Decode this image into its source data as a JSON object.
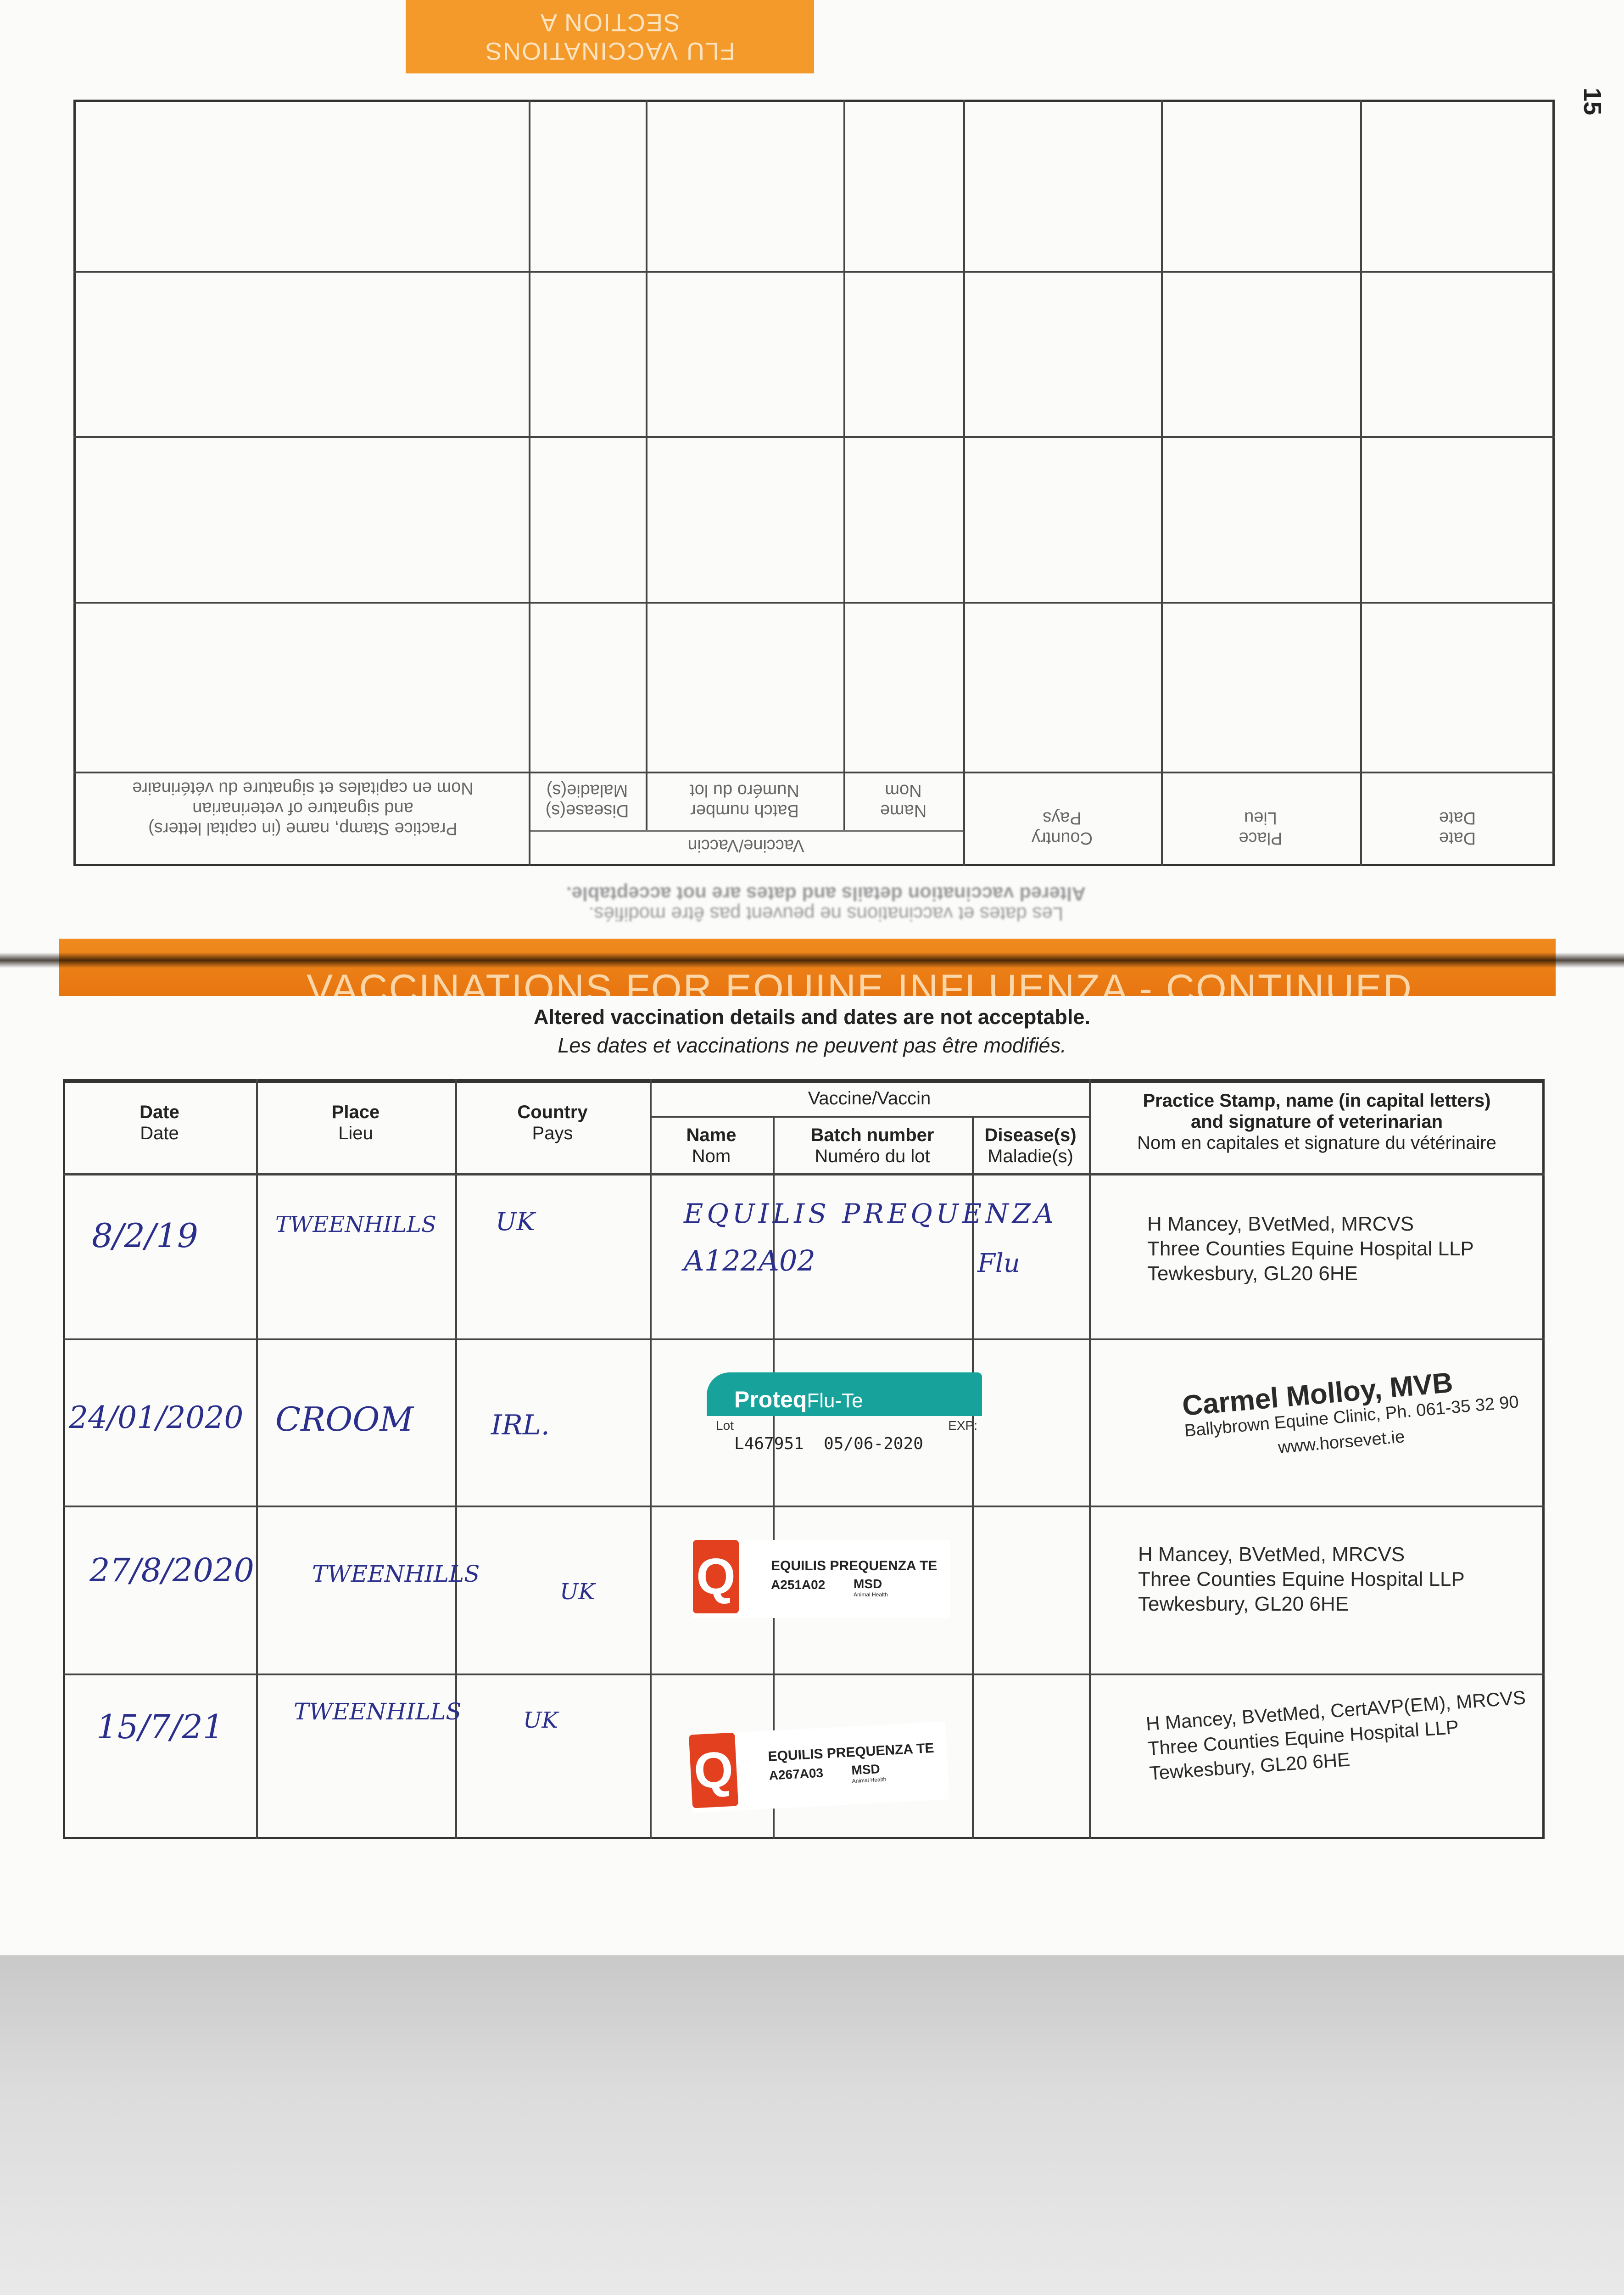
{
  "upper_page": {
    "tab_lines": [
      "FLU VACCINATIONS",
      "SECTION A"
    ],
    "page_number": "15",
    "header": {
      "date": [
        "Date",
        "Date"
      ],
      "place": [
        "Place",
        "Lieu"
      ],
      "country": [
        "Country",
        "Pays"
      ],
      "vaccine": "Vaccine/Vaccin",
      "name": [
        "Name",
        "Nom"
      ],
      "batch": [
        "Batch number",
        "Numéro du lot"
      ],
      "disease": [
        "Disease(s)",
        "Maladie(s)"
      ],
      "stamp": [
        "Practice Stamp, name (in capital letters)",
        "and signature of veterinarian",
        "Nom en capitales et signature du vétérinaire"
      ]
    },
    "caption": [
      "Altered vaccination details and dates are not acceptable.",
      "Les dates et vaccinations ne peuvent pas être modifiés."
    ]
  },
  "banner": "VACCINATIONS FOR EQUINE INFLUENZA - CONTINUED",
  "caption": {
    "bold": "Altered vaccination details and dates are not acceptable.",
    "italic": "Les dates et vaccinations ne peuvent pas être modifiés."
  },
  "table": {
    "header": {
      "date": [
        "Date",
        "Date"
      ],
      "place": [
        "Place",
        "Lieu"
      ],
      "country": [
        "Country",
        "Pays"
      ],
      "vaccine": "Vaccine/Vaccin",
      "name": [
        "Name",
        "Nom"
      ],
      "batch": [
        "Batch number",
        "Numéro du lot"
      ],
      "disease": [
        "Disease(s)",
        "Maladie(s)"
      ],
      "stamp": [
        "Practice Stamp, name (in capital letters)",
        "and signature of veterinarian",
        "Nom en capitales et signature du vétérinaire"
      ]
    },
    "rows": [
      {
        "date": "8/2/19",
        "place": "TWEENHILLS",
        "country": "UK",
        "name": "EQUILIS PREQUENZA",
        "batch": "A122A02",
        "disease": "Flu",
        "stamp": [
          "H Mancey, BVetMed, MRCVS",
          "Three Counties Equine Hospital LLP",
          "Tewkesbury, GL20 6HE"
        ]
      },
      {
        "date": "24/01/2020",
        "place": "CROOM",
        "country": "IRL.",
        "label": {
          "brand": "Proteq",
          "product": "Flu-Te",
          "lot_label": "Lot",
          "exp_label": "EXP:",
          "lot": "L467951",
          "exp": "05/06-2020"
        },
        "stamp": [
          "Carmel Molloy, MVB",
          "Ballybrown Equine Clinic, Ph. 061-35 32 90",
          "www.horsevet.ie"
        ]
      },
      {
        "date": "27/8/2020",
        "place": "TWEENHILLS",
        "country": "UK",
        "label": {
          "name": "EQUILIS PREQUENZA TE",
          "batch": "A251A02",
          "maker": "MSD",
          "maker_sub": "Animal Health"
        },
        "stamp": [
          "H Mancey, BVetMed, MRCVS",
          "Three Counties Equine Hospital LLP",
          "Tewkesbury, GL20 6HE"
        ]
      },
      {
        "date": "15/7/21",
        "place": "TWEENHILLS",
        "country": "UK",
        "label": {
          "name": "EQUILIS PREQUENZA TE",
          "batch": "A267A03",
          "maker": "MSD",
          "maker_sub": "Animal Health"
        },
        "stamp": [
          "H Mancey, BVetMed, CertAVP(EM), MRCVS",
          "Three Counties Equine Hospital LLP",
          "Tewkesbury, GL20 6HE"
        ]
      }
    ]
  },
  "colors": {
    "orange": "#f39a2a",
    "ink": "#2b2f8c",
    "proteq_teal": "#17a39b",
    "msd_red": "#e2401e"
  }
}
